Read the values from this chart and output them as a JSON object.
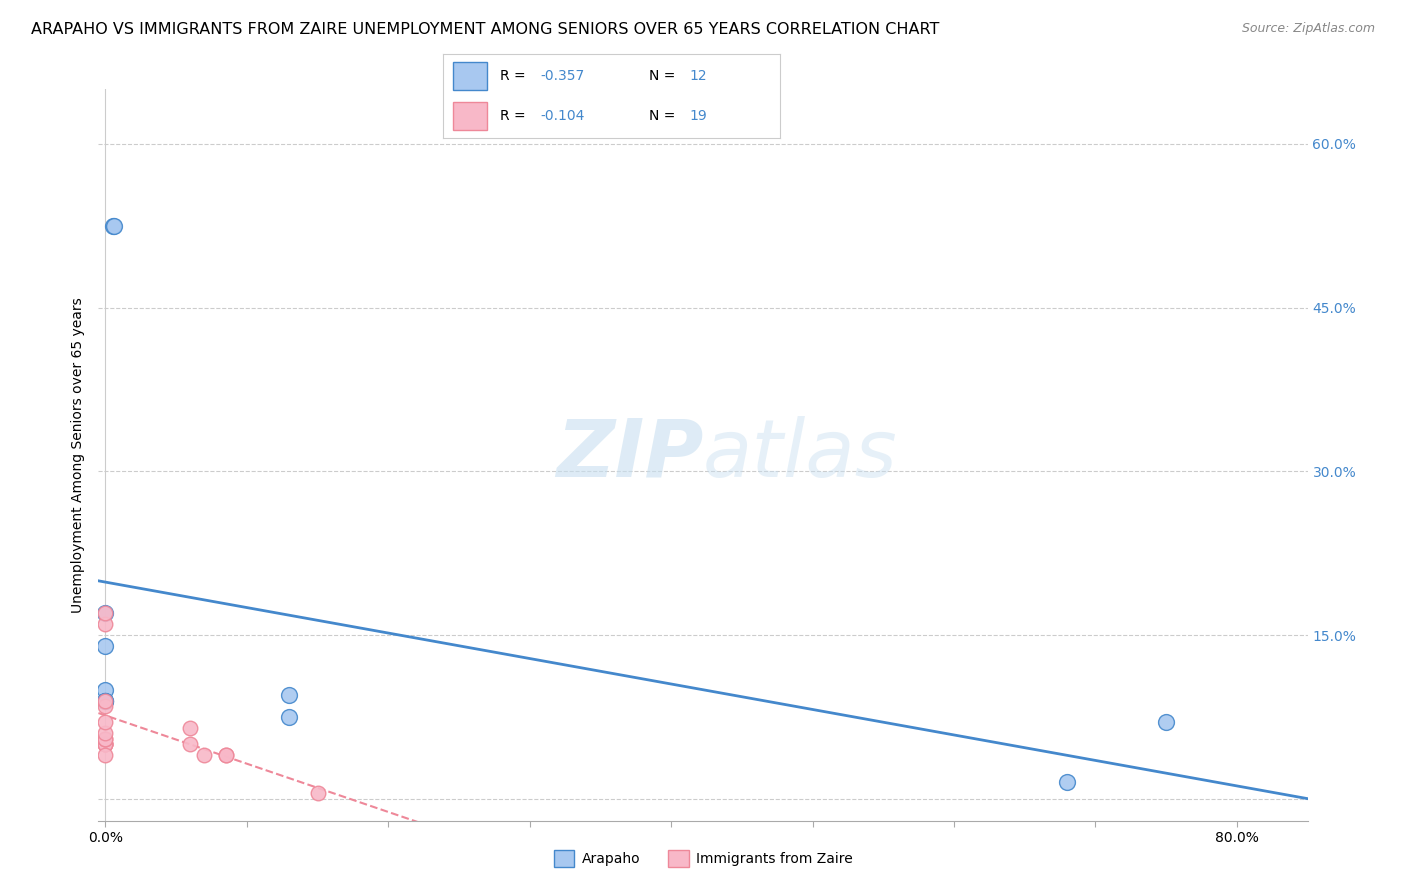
{
  "title": "ARAPAHO VS IMMIGRANTS FROM ZAIRE UNEMPLOYMENT AMONG SENIORS OVER 65 YEARS CORRELATION CHART",
  "source": "Source: ZipAtlas.com",
  "ylabel": "Unemployment Among Seniors over 65 years",
  "xlim": [
    -0.005,
    0.85
  ],
  "ylim": [
    -0.02,
    0.65
  ],
  "arapaho_x": [
    0.005,
    0.006,
    0.0,
    0.0,
    0.0,
    0.0,
    0.0,
    0.13,
    0.13,
    0.75,
    0.68,
    0.0
  ],
  "arapaho_y": [
    0.525,
    0.525,
    0.17,
    0.14,
    0.1,
    0.09,
    0.09,
    0.095,
    0.075,
    0.07,
    0.015,
    0.09
  ],
  "zaire_x": [
    0.0,
    0.0,
    0.0,
    0.0,
    0.0,
    0.0,
    0.0,
    0.0,
    0.0,
    0.0,
    0.0,
    0.0,
    0.06,
    0.06,
    0.07,
    0.085,
    0.085,
    0.15,
    0.0
  ],
  "zaire_y": [
    0.05,
    0.05,
    0.05,
    0.05,
    0.055,
    0.055,
    0.06,
    0.07,
    0.085,
    0.09,
    0.16,
    0.17,
    0.05,
    0.065,
    0.04,
    0.04,
    0.04,
    0.005,
    0.04
  ],
  "arapaho_color": "#a8c8f0",
  "zaire_color": "#f8b8c8",
  "arapaho_line_color": "#4488cc",
  "zaire_line_color": "#ee8899",
  "arapaho_r": -0.357,
  "arapaho_n": 12,
  "zaire_r": -0.104,
  "zaire_n": 19,
  "legend_arapaho": "Arapaho",
  "legend_zaire": "Immigrants from Zaire",
  "background_color": "#ffffff",
  "grid_color": "#cccccc",
  "title_fontsize": 11.5,
  "axis_fontsize": 10
}
